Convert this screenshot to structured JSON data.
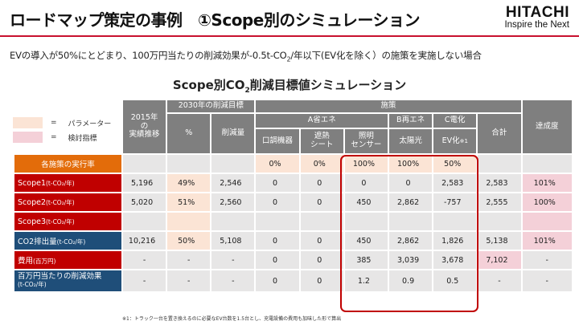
{
  "header": {
    "title": "ロードマップ策定の事例　①Scope別のシミュレーション",
    "logo_main": "HITACHI",
    "logo_sub": "Inspire the Next"
  },
  "subtitle": {
    "before": "EVの導入が50%にとどまり、100万円当たりの削減効果が-0.5t-CO",
    "sub": "2",
    "after": "/年以下(EV化を除く）の施策を実施しない場合"
  },
  "chart_title": {
    "before": "Scope別CO",
    "sub": "2",
    "after": "削減目標値シミュレーション"
  },
  "legend": {
    "param": {
      "eq": "=",
      "label": "パラメーター",
      "color": "#fbe4d5"
    },
    "review": {
      "eq": "=",
      "label": "検討指標",
      "color": "#f4d0d8"
    }
  },
  "table": {
    "headers": {
      "year": [
        "2015年",
        "の",
        "実績推移"
      ],
      "target2030": "2030年の削減目標",
      "pct": "%",
      "reduction": "削減量",
      "measures": "施策",
      "groupA": "A省エネ",
      "groupB": "B再エネ",
      "groupC": "C電化",
      "total": "合計",
      "achievement": "達成度",
      "col_aircon": "口調機器",
      "col_shield": [
        "遮熱",
        "シート"
      ],
      "col_lighting": [
        "照明",
        "センサー"
      ],
      "col_solar": "太陽光",
      "col_ev": "EV化",
      "col_ev_note": "※1"
    },
    "rows": {
      "impl": {
        "label": "各施策の実行率",
        "aircon": "0%",
        "shield": "0%",
        "lighting": "100%",
        "solar": "100%",
        "ev": "50%"
      },
      "scope1": {
        "label": "Scope1",
        "unit": "(t-CO₂/年)",
        "y2015": "5,196",
        "pct": "49%",
        "reduction": "2,546",
        "aircon": "0",
        "shield": "0",
        "lighting": "0",
        "solar": "0",
        "ev": "2,583",
        "total": "2,583",
        "achievement": "101%"
      },
      "scope2": {
        "label": "Scope2",
        "unit": "(t-CO₂/年)",
        "y2015": "5,020",
        "pct": "51%",
        "reduction": "2,560",
        "aircon": "0",
        "shield": "0",
        "lighting": "450",
        "solar": "2,862",
        "ev": "-757",
        "total": "2,555",
        "achievement": "100%"
      },
      "scope3": {
        "label": "Scope3",
        "unit": "(t-CO₂/年)"
      },
      "co2": {
        "label": "CO2排出量",
        "unit": "(t-CO₂/年)",
        "y2015": "10,216",
        "pct": "50%",
        "reduction": "5,108",
        "aircon": "0",
        "shield": "0",
        "lighting": "450",
        "solar": "2,862",
        "ev": "1,826",
        "total": "5,138",
        "achievement": "101%"
      },
      "cost": {
        "label": "費用",
        "unit": "(百万円)",
        "y2015": "-",
        "pct": "-",
        "reduction": "-",
        "aircon": "0",
        "shield": "0",
        "lighting": "385",
        "solar": "3,039",
        "ev": "3,678",
        "total": "7,102",
        "achievement": "-"
      },
      "effect": {
        "label": "百万円当たりの削減効果",
        "unit": "(t-CO₂/年)",
        "y2015": "-",
        "pct": "-",
        "reduction": "-",
        "aircon": "0",
        "shield": "0",
        "lighting": "1.2",
        "solar": "0.9",
        "ev": "0.5",
        "total": "-",
        "achievement": "-"
      }
    }
  },
  "footnote": "※1：トラック一台を置き換えるのに必要なEV台数を1.5台とし、充電設備の費用も加味した形で算出"
}
